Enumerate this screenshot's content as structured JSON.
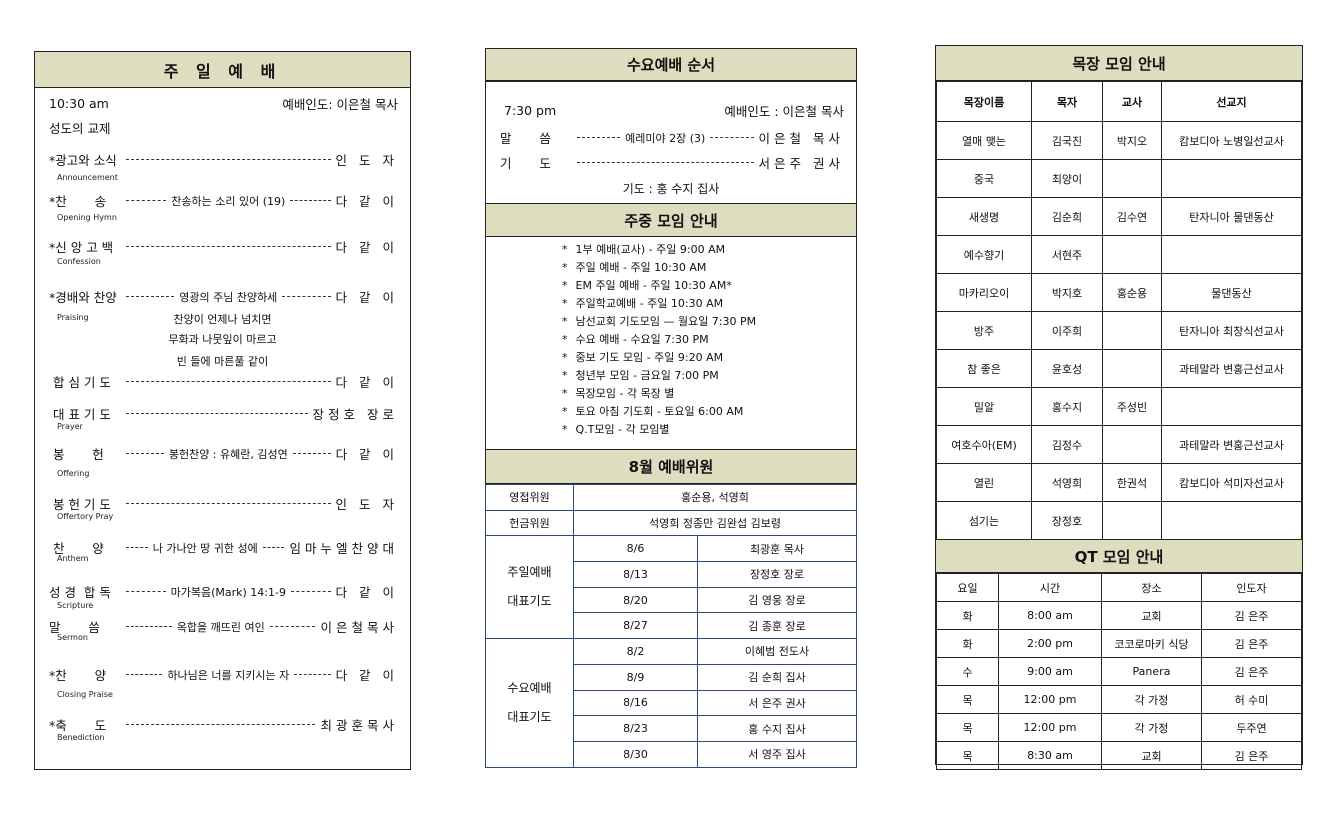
{
  "sunday": {
    "title": "주 일 예 배",
    "time": "10:30 am",
    "leader": "예배인도: 이은철 목사",
    "fellowship": "성도의 교제",
    "items": [
      {
        "label": "*광고와 소식",
        "en": "Announcement",
        "mid": "",
        "right": "인 도 자"
      },
      {
        "label": "*찬       송",
        "en": "Opening Hymn",
        "mid": "찬송하는 소리 있어 (19)",
        "right": "다 같 이"
      },
      {
        "label": "*신 앙 고 백",
        "en": "Confession",
        "mid": "",
        "right": "다 같 이"
      },
      {
        "label": "*경배와 찬양",
        "en": "Praising",
        "mid": "영광의 주님 찬양하세",
        "right": "다 같 이"
      },
      {
        "label": " 합 심 기 도",
        "en": "",
        "mid": "",
        "right": "다 같 이"
      },
      {
        "label": " 대 표 기 도",
        "en": "Prayer",
        "mid": "",
        "right": "장정호 장로"
      },
      {
        "label": " 봉       헌",
        "en": "Offering",
        "mid": "봉헌찬양 : 유혜란, 김성연",
        "right": "다 같 이"
      },
      {
        "label": " 봉 헌 기 도",
        "en": "Offertory Pray",
        "mid": "",
        "right": "인 도 자"
      },
      {
        "label": " 찬       양",
        "en": "Anthem",
        "mid": "나 가나안 땅 귀한 성에",
        "right": "임마누엘찬양대"
      },
      {
        "label": "성 경  합 독",
        "en": "Scripture",
        "mid": "마가복음(Mark) 14:1-9",
        "right": "다 같 이"
      },
      {
        "label": "말       씀",
        "en": "Sermon",
        "mid": "옥합을 깨뜨린 여인",
        "right": "이은철목사"
      },
      {
        "label": "*찬       양",
        "en": "Closing Praise",
        "mid": "하나님은 너를 지키시는 자",
        "right": "다 같 이"
      },
      {
        "label": "*축       도",
        "en": "Benediction",
        "mid": "",
        "right": "최광훈목사"
      }
    ],
    "lyrics": [
      "찬양이 언제나 넘치면",
      "무화과 나뭇잎이 마르고",
      "빈 들에 마른풀 같이"
    ]
  },
  "wednesday": {
    "title": "수요예배 순서",
    "time": "7:30 pm",
    "leader": "예배인도 : 이은철 목사",
    "items": [
      {
        "label": "말       씀",
        "mid": "예레미야 2장 (3)",
        "right": "이은철 목사"
      },
      {
        "label": "기       도",
        "mid": "",
        "right": "서은주 권사"
      }
    ],
    "prayer_note": "기도 : 홍 수지 집사"
  },
  "weekly": {
    "title": "주중 모임 안내",
    "items": [
      "1부 예배(교사) - 주일 9:00 AM",
      "주일 예배 - 주일 10:30 AM",
      "EM 주일 예배 - 주일 10:30 AM*",
      "주일학교예배 - 주일 10:30 AM",
      "남선교회 기도모임 — 월요일 7:30 PM",
      "수요 예배 - 수요일 7:30 PM",
      "중보 기도 모임 - 주일 9:20 AM",
      "청년부 모임 - 금요일 7:00 PM",
      "목장모임 - 각 목장 별",
      "토요 아침 기도회 - 토요일 6:00 AM",
      "Q.T모임 - 각 모임별"
    ]
  },
  "committee": {
    "title": "8월 예배위원",
    "ushers": {
      "label": "영접위원",
      "value": "홍순용,  석영희"
    },
    "offering": {
      "label": "헌금위원",
      "value": "석영희 정종만 김완섭 김보령"
    },
    "sunday": {
      "label1": "주일예배",
      "label2": "대표기도",
      "rows": [
        [
          "8/6",
          "최광훈 목사"
        ],
        [
          "8/13",
          "장정호 장로"
        ],
        [
          "8/20",
          "김 영웅 장로"
        ],
        [
          "8/27",
          "김 종훈 장로"
        ]
      ]
    },
    "wednesday": {
      "label1": "수요예배",
      "label2": "대표기도",
      "rows": [
        [
          "8/2",
          "이혜범 전도사"
        ],
        [
          "8/9",
          "김 순희 집사"
        ],
        [
          "8/16",
          "서 은주 권사"
        ],
        [
          "8/23",
          "홍 수지 집사"
        ],
        [
          "8/30",
          "서 영주 집사"
        ]
      ]
    }
  },
  "mokjang": {
    "title": "목장 모임 안내",
    "headers": [
      "목장이름",
      "목자",
      "교사",
      "선교지"
    ],
    "rows": [
      [
        "열매 맺는",
        "김국진",
        "박지오",
        "캄보디아 노병일선교사"
      ],
      [
        "중국",
        "최양이",
        "",
        ""
      ],
      [
        "새생명",
        "김순희",
        "김수연",
        "탄자니아  물댄동산"
      ],
      [
        "예수향기",
        "서현주",
        "",
        ""
      ],
      [
        "마카리오이",
        "박지호",
        "홍순용",
        "물댄동산"
      ],
      [
        "방주",
        "이주희",
        "",
        "탄자니아 최창식선교사"
      ],
      [
        "참 좋은",
        "윤호성",
        "",
        "과테말라 변홍근선교사"
      ],
      [
        "밀알",
        "홍수지",
        "주성빈",
        ""
      ],
      [
        "여호수아(EM)",
        "김정수",
        "",
        "과테말라 변홍근선교사"
      ],
      [
        "열린",
        "석영희",
        "한권석",
        "캄보디아 석미자선교사"
      ],
      [
        "섬기는",
        "장정호",
        "",
        ""
      ]
    ]
  },
  "qt": {
    "title": "QT 모임 안내",
    "headers": [
      "요일",
      "시간",
      "장소",
      "인도자"
    ],
    "rows": [
      [
        "화",
        "8:00 am",
        "교회",
        "김 은주"
      ],
      [
        "화",
        "2:00 pm",
        "코코로마키 식당",
        "김 은주"
      ],
      [
        "수",
        "9:00 am",
        "Panera",
        "김 은주"
      ],
      [
        "목",
        "12:00 pm",
        "각 가정",
        "허 수미"
      ],
      [
        "목",
        "12:00 pm",
        "각 가정",
        "두주연"
      ],
      [
        "목",
        "8:30 am",
        "교회",
        "김 은주"
      ]
    ]
  },
  "colors": {
    "header_bg": "#dfddc0",
    "committee_border": "#2b4a7a"
  }
}
